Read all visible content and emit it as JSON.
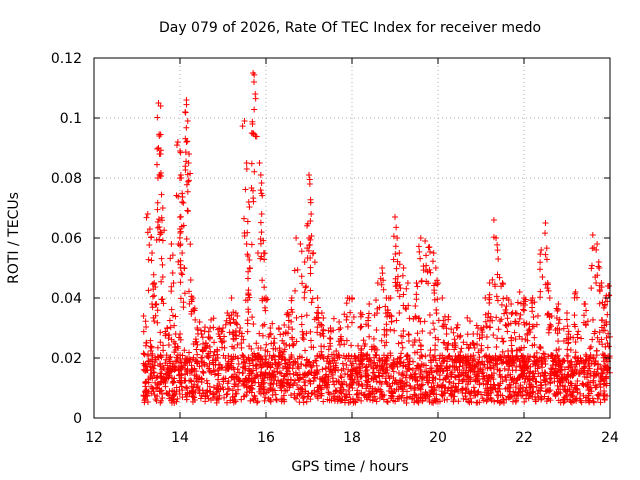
{
  "chart_data": {
    "type": "scatter",
    "title": "Day 079 of 2026, Rate Of TEC Index for receiver medo",
    "xlabel": "GPS time / hours",
    "ylabel": "ROTI / TECUs",
    "xlim": [
      12,
      24
    ],
    "ylim": [
      0,
      0.12
    ],
    "xticks": [
      12,
      14,
      16,
      18,
      20,
      22,
      24
    ],
    "xtick_labels": [
      "12",
      "14",
      "16",
      "18",
      "20",
      "22",
      "24"
    ],
    "yticks": [
      0,
      0.02,
      0.04,
      0.06,
      0.08,
      0.1,
      0.12
    ],
    "ytick_labels": [
      "0",
      "0.02",
      "0.04",
      "0.06",
      "0.08",
      "0.1",
      "0.12"
    ],
    "grid": true,
    "marker": "+",
    "marker_color": "#ff0000",
    "data_coverage_hours": [
      13.15,
      24.0
    ],
    "series": [
      {
        "name": "ROTI",
        "points": [
          [
            13.2,
            0.012
          ],
          [
            13.25,
            0.068
          ],
          [
            13.3,
            0.063
          ],
          [
            13.35,
            0.055
          ],
          [
            13.4,
            0.045
          ],
          [
            13.45,
            0.038
          ],
          [
            13.5,
            0.105
          ],
          [
            13.55,
            0.104
          ],
          [
            13.52,
            0.094
          ],
          [
            13.5,
            0.09
          ],
          [
            13.55,
            0.088
          ],
          [
            13.6,
            0.07
          ],
          [
            13.6,
            0.047
          ],
          [
            13.7,
            0.03
          ],
          [
            13.75,
            0.02
          ],
          [
            13.8,
            0.058
          ],
          [
            13.85,
            0.045
          ],
          [
            13.9,
            0.028
          ],
          [
            13.95,
            0.092
          ],
          [
            14.0,
            0.089
          ],
          [
            14.02,
            0.081
          ],
          [
            14.05,
            0.072
          ],
          [
            14.0,
            0.063
          ],
          [
            14.05,
            0.055
          ],
          [
            14.1,
            0.05
          ],
          [
            14.12,
            0.102
          ],
          [
            14.15,
            0.106
          ],
          [
            14.18,
            0.099
          ],
          [
            14.15,
            0.092
          ],
          [
            14.2,
            0.085
          ],
          [
            14.25,
            0.046
          ],
          [
            14.3,
            0.04
          ],
          [
            14.4,
            0.03
          ],
          [
            14.5,
            0.028
          ],
          [
            14.6,
            0.025
          ],
          [
            14.7,
            0.03
          ],
          [
            14.8,
            0.022
          ],
          [
            14.9,
            0.028
          ],
          [
            15.0,
            0.03
          ],
          [
            15.1,
            0.035
          ],
          [
            15.2,
            0.04
          ],
          [
            15.3,
            0.035
          ],
          [
            15.4,
            0.03
          ],
          [
            15.5,
            0.099
          ],
          [
            15.55,
            0.085
          ],
          [
            15.6,
            0.072
          ],
          [
            15.55,
            0.058
          ],
          [
            15.62,
            0.05
          ],
          [
            15.7,
            0.115
          ],
          [
            15.72,
            0.112
          ],
          [
            15.75,
            0.108
          ],
          [
            15.7,
            0.095
          ],
          [
            15.85,
            0.085
          ],
          [
            15.88,
            0.081
          ],
          [
            15.9,
            0.068
          ],
          [
            15.95,
            0.055
          ],
          [
            16.0,
            0.04
          ],
          [
            16.1,
            0.03
          ],
          [
            16.2,
            0.025
          ],
          [
            16.3,
            0.03
          ],
          [
            16.4,
            0.028
          ],
          [
            16.5,
            0.035
          ],
          [
            16.6,
            0.04
          ],
          [
            16.7,
            0.06
          ],
          [
            16.8,
            0.058
          ],
          [
            16.9,
            0.052
          ],
          [
            17.0,
            0.081
          ],
          [
            17.02,
            0.078
          ],
          [
            17.05,
            0.068
          ],
          [
            17.0,
            0.06
          ],
          [
            17.1,
            0.055
          ],
          [
            17.2,
            0.04
          ],
          [
            17.3,
            0.035
          ],
          [
            17.5,
            0.03
          ],
          [
            17.7,
            0.032
          ],
          [
            17.9,
            0.04
          ],
          [
            18.0,
            0.04
          ],
          [
            18.2,
            0.035
          ],
          [
            18.4,
            0.038
          ],
          [
            18.6,
            0.045
          ],
          [
            18.7,
            0.05
          ],
          [
            18.8,
            0.04
          ],
          [
            18.9,
            0.04
          ],
          [
            19.0,
            0.067
          ],
          [
            19.05,
            0.06
          ],
          [
            19.1,
            0.055
          ],
          [
            19.2,
            0.05
          ],
          [
            19.3,
            0.045
          ],
          [
            19.5,
            0.045
          ],
          [
            19.6,
            0.06
          ],
          [
            19.7,
            0.059
          ],
          [
            19.8,
            0.057
          ],
          [
            19.9,
            0.055
          ],
          [
            19.95,
            0.05
          ],
          [
            20.0,
            0.045
          ],
          [
            20.1,
            0.04
          ],
          [
            20.2,
            0.028
          ],
          [
            20.4,
            0.025
          ],
          [
            20.6,
            0.02
          ],
          [
            20.8,
            0.025
          ],
          [
            21.0,
            0.03
          ],
          [
            21.1,
            0.04
          ],
          [
            21.2,
            0.045
          ],
          [
            21.3,
            0.066
          ],
          [
            21.35,
            0.06
          ],
          [
            21.4,
            0.053
          ],
          [
            21.5,
            0.045
          ],
          [
            21.6,
            0.04
          ],
          [
            21.7,
            0.038
          ],
          [
            21.8,
            0.035
          ],
          [
            21.9,
            0.042
          ],
          [
            22.0,
            0.04
          ],
          [
            22.2,
            0.04
          ],
          [
            22.4,
            0.056
          ],
          [
            22.5,
            0.065
          ],
          [
            22.55,
            0.045
          ],
          [
            22.6,
            0.04
          ],
          [
            22.8,
            0.038
          ],
          [
            23.0,
            0.035
          ],
          [
            23.2,
            0.042
          ],
          [
            23.4,
            0.038
          ],
          [
            23.6,
            0.061
          ],
          [
            23.7,
            0.058
          ],
          [
            23.75,
            0.05
          ],
          [
            23.8,
            0.045
          ],
          [
            23.9,
            0.04
          ],
          [
            23.95,
            0.044
          ]
        ],
        "dense_band": {
          "x": [
            13.15,
            24.0
          ],
          "y": [
            0.003,
            0.035
          ],
          "typical": 0.013
        }
      }
    ]
  }
}
